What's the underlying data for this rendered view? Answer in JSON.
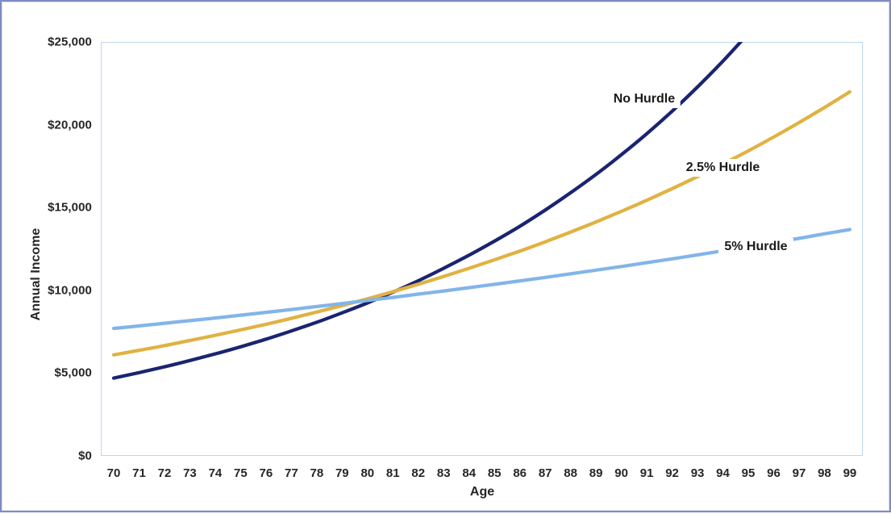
{
  "chart_data": {
    "type": "line",
    "title": "",
    "xlabel": "Age",
    "ylabel": "Annual Income",
    "x": [
      70,
      71,
      72,
      73,
      74,
      75,
      76,
      77,
      78,
      79,
      80,
      81,
      82,
      83,
      84,
      85,
      86,
      87,
      88,
      89,
      90,
      91,
      92,
      93,
      94,
      95,
      96,
      97,
      98,
      99
    ],
    "xlim": [
      70,
      99
    ],
    "ylim": [
      0,
      25000
    ],
    "y_tick_values": [
      0,
      5000,
      10000,
      15000,
      20000,
      25000
    ],
    "y_tick_labels": [
      "$0",
      "$5,000",
      "$10,000",
      "$15,000",
      "$20,000",
      "$25,000"
    ],
    "grid": false,
    "legend": "inline-labels-on-lines",
    "plot_border_color": "#bdd7ee",
    "frame_border_color": "#7f8ac5",
    "series": [
      {
        "name": "No Hurdle",
        "color": "#1a2470",
        "values": [
          4700,
          5030,
          5380,
          5760,
          6160,
          6590,
          7050,
          7550,
          8070,
          8640,
          9240,
          9890,
          10580,
          11330,
          12120,
          12970,
          13870,
          14850,
          15890,
          17000,
          18190,
          19460,
          20820,
          22280,
          23840,
          25510,
          null,
          null,
          null,
          null
        ]
      },
      {
        "name": "2.5% Hurdle",
        "color": "#e0b242",
        "values": [
          6100,
          6380,
          6660,
          6970,
          7280,
          7610,
          7950,
          8310,
          8690,
          9080,
          9490,
          9920,
          10370,
          10840,
          11330,
          11840,
          12370,
          12930,
          13520,
          14130,
          14770,
          15440,
          16140,
          16870,
          17630,
          18420,
          19260,
          20130,
          21040,
          21990
        ]
      },
      {
        "name": "5% Hurdle",
        "color": "#82b5e8",
        "values": [
          7700,
          7850,
          8010,
          8170,
          8330,
          8500,
          8670,
          8840,
          9020,
          9200,
          9390,
          9570,
          9770,
          9960,
          10160,
          10360,
          10570,
          10780,
          11000,
          11220,
          11440,
          11670,
          11900,
          12140,
          12390,
          12630,
          12890,
          13140,
          13410,
          13670
        ]
      }
    ],
    "annotations": [
      {
        "name": "series-label-no-hurdle",
        "text": "No Hurdle",
        "age": 90.9,
        "value": 21550
      },
      {
        "name": "series-label-2-5-hurdle",
        "text": "2.5% Hurdle",
        "age": 94.0,
        "value": 17400
      },
      {
        "name": "series-label-5-hurdle",
        "text": "5% Hurdle",
        "age": 95.3,
        "value": 12600
      }
    ]
  }
}
